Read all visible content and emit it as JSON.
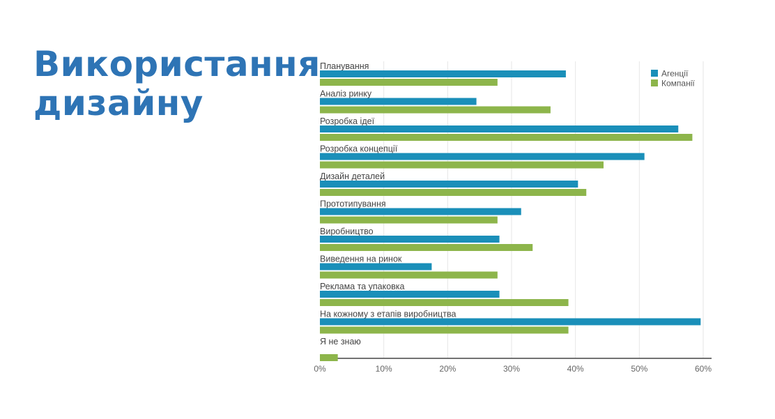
{
  "title_lines": [
    "Використання",
    "дизайну"
  ],
  "chart_data": {
    "type": "bar",
    "orientation": "horizontal",
    "title": "Використання дизайну",
    "categories": [
      "Планування",
      "Аналіз ринку",
      "Розробка ідеї",
      "Розробка концепції",
      "Дизайн деталей",
      "Прототипування",
      "Виробництво",
      "Виведення на ринок",
      "Реклама та упаковка",
      "На кожному з етапів виробництва",
      "Я не знаю"
    ],
    "series": [
      {
        "name": "Агенції",
        "color": "#1a8fb9",
        "values": [
          38.5,
          24.5,
          56.1,
          50.8,
          40.4,
          31.5,
          28.1,
          17.5,
          28.1,
          59.6,
          0
        ]
      },
      {
        "name": "Компанії",
        "color": "#8db54b",
        "values": [
          27.8,
          36.1,
          58.3,
          44.4,
          41.7,
          27.8,
          33.3,
          27.8,
          38.9,
          38.9,
          2.8
        ]
      }
    ],
    "xlim": [
      0,
      60
    ],
    "xticks": [
      "0%",
      "10%",
      "20%",
      "30%",
      "40%",
      "50%",
      "60%"
    ],
    "xlabel": "",
    "ylabel": "",
    "grid": true,
    "legend": "top-right"
  }
}
